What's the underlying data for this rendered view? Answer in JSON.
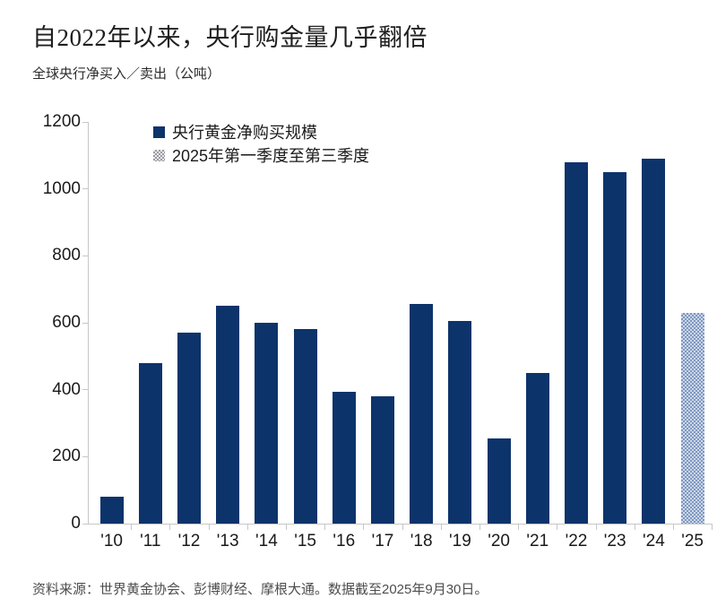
{
  "title": "自2022年以来，央行购金量几乎翻倍",
  "subtitle": "全球央行净买入／卖出（公吨）",
  "legend": [
    {
      "label": "央行黄金净购买规模",
      "swatch": "solid-navy"
    },
    {
      "label": "2025年第一季度至第三季度",
      "swatch": "checker-pattern"
    }
  ],
  "footer": "资料来源：世界黄金协会、彭博财经、摩根大通。数据截至2025年9月30日。",
  "colors": {
    "bar": "#0d336b",
    "bar2025_dark": "#7e97c0",
    "bar2025_light": "#ccd7e8",
    "legend_checker_dark": "#9b9ba3",
    "legend_checker_light": "#e8e8ec",
    "axis": "#c7c7c7"
  },
  "chart_data": {
    "type": "bar",
    "title": "自2022年以来，央行购金量几乎翻倍",
    "subtitle": "全球央行净买入／卖出（公吨）",
    "categories": [
      "'10",
      "'11",
      "'12",
      "'13",
      "'14",
      "'15",
      "'16",
      "'17",
      "'18",
      "'19",
      "'20",
      "'21",
      "'22",
      "'23",
      "'24",
      "'25"
    ],
    "values": [
      80,
      480,
      570,
      650,
      600,
      580,
      395,
      380,
      655,
      605,
      255,
      450,
      1080,
      1050,
      1090,
      630
    ],
    "highlight_index": 15,
    "highlight_note": "2025年第一季度至第三季度",
    "series_name": "央行黄金净购买规模",
    "xlabel": "",
    "ylabel": "公吨",
    "ylim": [
      0,
      1200
    ],
    "yticks": [
      0,
      200,
      400,
      600,
      800,
      1000,
      1200
    ],
    "grid": false,
    "legend_position": "top-left-inside"
  }
}
